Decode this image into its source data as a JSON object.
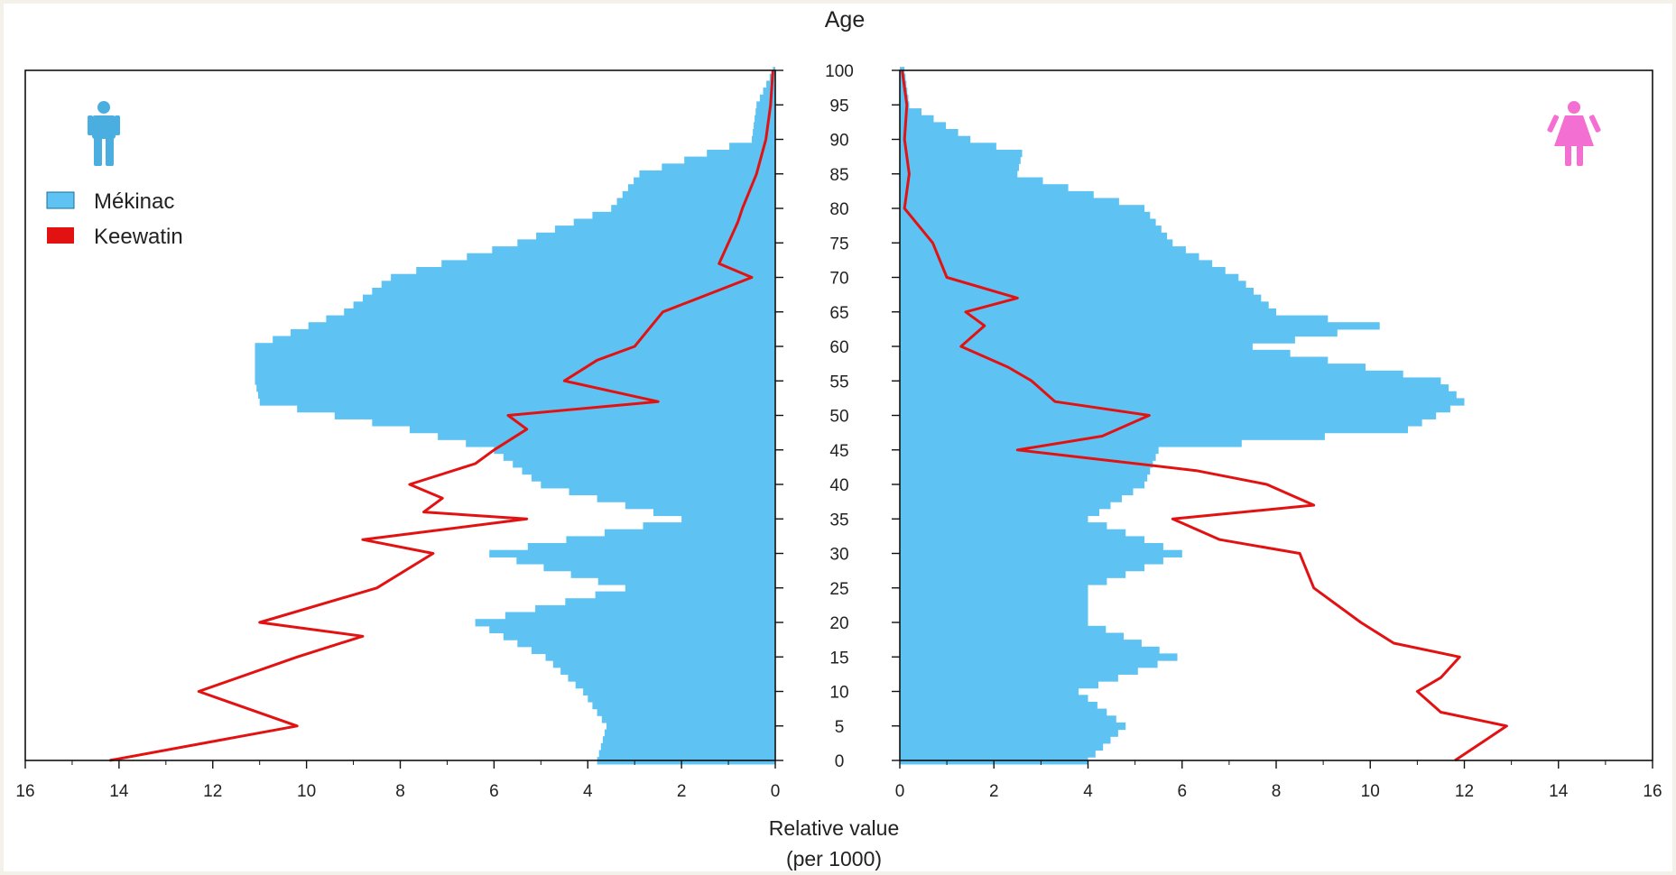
{
  "chart_data": {
    "type": "area",
    "subtype": "population-pyramid",
    "title": "Age",
    "xlabel_line1": "Relative value",
    "xlabel_line2": "(per 1000)",
    "x_ticks": [
      "16",
      "14",
      "12",
      "10",
      "8",
      "6",
      "4",
      "2",
      "0"
    ],
    "x_ticks_right": [
      "0",
      "2",
      "4",
      "6",
      "8",
      "10",
      "12",
      "14",
      "16"
    ],
    "xlim": [
      0,
      16
    ],
    "ylim": [
      0,
      100
    ],
    "age_ticks": [
      "0",
      "5",
      "10",
      "15",
      "20",
      "25",
      "30",
      "35",
      "40",
      "45",
      "50",
      "55",
      "60",
      "65",
      "70",
      "75",
      "80",
      "85",
      "90",
      "95",
      "100"
    ],
    "legend": {
      "position": "top-left",
      "entries": [
        "Mékinac",
        "Keewatin"
      ]
    },
    "colors": {
      "Mékinac": "#5ec3f2",
      "Keewatin": "#e31212",
      "male_icon": "#4aaee0",
      "female_icon": "#f46fd2",
      "frame": "#111111"
    },
    "icons": {
      "left_panel": "male-icon",
      "right_panel": "female-icon"
    },
    "panels": [
      {
        "sex": "male",
        "series": [
          {
            "name": "Mékinac",
            "ages": [
              0,
              5,
              10,
              15,
              20,
              25,
              30,
              35,
              40,
              45,
              48,
              52,
              55,
              60,
              65,
              70,
              75,
              80,
              85,
              90,
              95,
              100
            ],
            "values": [
              3.8,
              3.6,
              4.1,
              4.9,
              6.4,
              3.2,
              6.1,
              2.0,
              5.0,
              6.0,
              7.8,
              11.0,
              11.1,
              11.1,
              9.2,
              8.2,
              5.5,
              3.5,
              2.9,
              0.5,
              0.4,
              0.05
            ]
          },
          {
            "name": "Keewatin",
            "ages": [
              0,
              5,
              10,
              15,
              18,
              20,
              25,
              30,
              32,
              35,
              36,
              38,
              40,
              43,
              45,
              48,
              50,
              52,
              55,
              58,
              60,
              65,
              70,
              72,
              75,
              78,
              80,
              85,
              90,
              95,
              100
            ],
            "values": [
              14.2,
              10.2,
              12.3,
              10.2,
              8.8,
              11.0,
              8.5,
              7.3,
              8.8,
              5.3,
              7.5,
              7.1,
              7.8,
              6.4,
              6.0,
              5.3,
              5.7,
              2.5,
              4.5,
              3.8,
              3.0,
              2.4,
              0.5,
              1.2,
              1.0,
              0.8,
              0.7,
              0.4,
              0.2,
              0.1,
              0.05
            ]
          }
        ]
      },
      {
        "sex": "female",
        "series": [
          {
            "name": "Mékinac",
            "ages": [
              0,
              5,
              10,
              15,
              20,
              25,
              30,
              35,
              40,
              45,
              48,
              52,
              55,
              60,
              63,
              65,
              70,
              75,
              80,
              85,
              88,
              90,
              95,
              100
            ],
            "values": [
              4.0,
              4.8,
              3.8,
              5.9,
              4.0,
              4.0,
              6.0,
              4.0,
              5.2,
              5.5,
              10.8,
              12.0,
              11.5,
              7.5,
              10.2,
              8.0,
              7.2,
              5.8,
              5.2,
              2.5,
              2.6,
              1.5,
              0.2,
              0.1
            ]
          },
          {
            "name": "Keewatin",
            "ages": [
              0,
              5,
              7,
              10,
              12,
              15,
              17,
              20,
              25,
              30,
              32,
              35,
              37,
              40,
              42,
              45,
              47,
              50,
              52,
              55,
              57,
              60,
              63,
              65,
              67,
              70,
              75,
              80,
              85,
              90,
              95,
              100
            ],
            "values": [
              11.8,
              12.9,
              11.5,
              11.0,
              11.5,
              11.9,
              10.5,
              9.8,
              8.8,
              8.5,
              6.8,
              5.8,
              8.8,
              7.8,
              6.3,
              2.5,
              4.3,
              5.3,
              3.3,
              2.8,
              2.3,
              1.3,
              1.8,
              1.4,
              2.5,
              1.0,
              0.7,
              0.1,
              0.2,
              0.1,
              0.15,
              0.05
            ]
          }
        ]
      }
    ]
  }
}
